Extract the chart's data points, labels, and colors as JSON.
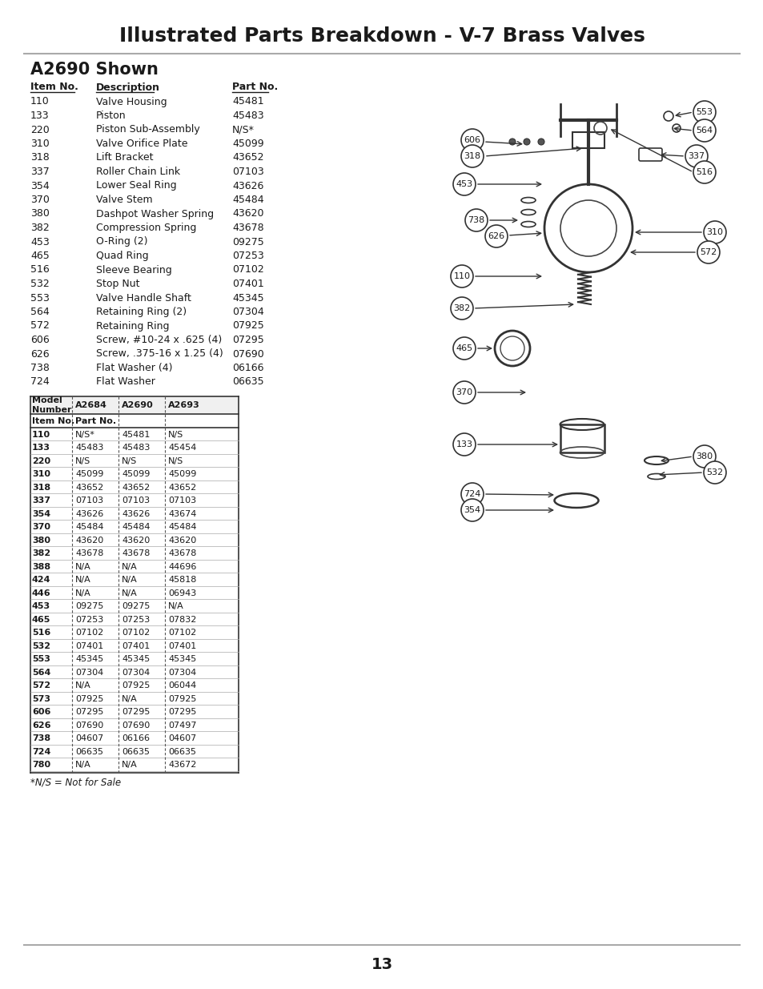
{
  "title": "Illustrated Parts Breakdown - V-7 Brass Valves",
  "subtitle": "A2690 Shown",
  "page_number": "13",
  "bg_color": "#ffffff",
  "text_color": "#1a1a1a",
  "parts_list": [
    {
      "item": "110",
      "desc": "Valve Housing",
      "part": "45481"
    },
    {
      "item": "133",
      "desc": "Piston",
      "part": "45483"
    },
    {
      "item": "220",
      "desc": "Piston Sub-Assembly",
      "part": "N/S*"
    },
    {
      "item": "310",
      "desc": "Valve Orifice Plate",
      "part": "45099"
    },
    {
      "item": "318",
      "desc": "Lift Bracket",
      "part": "43652"
    },
    {
      "item": "337",
      "desc": "Roller Chain Link",
      "part": "07103"
    },
    {
      "item": "354",
      "desc": "Lower Seal Ring",
      "part": "43626"
    },
    {
      "item": "370",
      "desc": "Valve Stem",
      "part": "45484"
    },
    {
      "item": "380",
      "desc": "Dashpot Washer Spring",
      "part": "43620"
    },
    {
      "item": "382",
      "desc": "Compression Spring",
      "part": "43678"
    },
    {
      "item": "453",
      "desc": "O-Ring (2)",
      "part": "09275"
    },
    {
      "item": "465",
      "desc": "Quad Ring",
      "part": "07253"
    },
    {
      "item": "516",
      "desc": "Sleeve Bearing",
      "part": "07102"
    },
    {
      "item": "532",
      "desc": "Stop Nut",
      "part": "07401"
    },
    {
      "item": "553",
      "desc": "Valve Handle Shaft",
      "part": "45345"
    },
    {
      "item": "564",
      "desc": "Retaining Ring (2)",
      "part": "07304"
    },
    {
      "item": "572",
      "desc": "Retaining Ring",
      "part": "07925"
    },
    {
      "item": "606",
      "desc": "Screw, #10-24 x .625 (4)",
      "part": "07295"
    },
    {
      "item": "626",
      "desc": "Screw, .375-16 x 1.25 (4)",
      "part": "07690"
    },
    {
      "item": "738",
      "desc": "Flat Washer (4)",
      "part": "06166"
    },
    {
      "item": "724",
      "desc": "Flat Washer",
      "part": "06635"
    }
  ],
  "comparison_table": {
    "headers": [
      "Model\nNumber",
      "A2684",
      "A2690",
      "A2693"
    ],
    "subheader": [
      "Item No.",
      "Part No.",
      "",
      ""
    ],
    "rows": [
      [
        "110",
        "N/S*",
        "45481",
        "N/S"
      ],
      [
        "133",
        "45483",
        "45483",
        "45454"
      ],
      [
        "220",
        "N/S",
        "N/S",
        "N/S"
      ],
      [
        "310",
        "45099",
        "45099",
        "45099"
      ],
      [
        "318",
        "43652",
        "43652",
        "43652"
      ],
      [
        "337",
        "07103",
        "07103",
        "07103"
      ],
      [
        "354",
        "43626",
        "43626",
        "43674"
      ],
      [
        "370",
        "45484",
        "45484",
        "45484"
      ],
      [
        "380",
        "43620",
        "43620",
        "43620"
      ],
      [
        "382",
        "43678",
        "43678",
        "43678"
      ],
      [
        "388",
        "N/A",
        "N/A",
        "44696"
      ],
      [
        "424",
        "N/A",
        "N/A",
        "45818"
      ],
      [
        "446",
        "N/A",
        "N/A",
        "06943"
      ],
      [
        "453",
        "09275",
        "09275",
        "N/A"
      ],
      [
        "465",
        "07253",
        "07253",
        "07832"
      ],
      [
        "516",
        "07102",
        "07102",
        "07102"
      ],
      [
        "532",
        "07401",
        "07401",
        "07401"
      ],
      [
        "553",
        "45345",
        "45345",
        "45345"
      ],
      [
        "564",
        "07304",
        "07304",
        "07304"
      ],
      [
        "572",
        "N/A",
        "07925",
        "06044"
      ],
      [
        "573",
        "07925",
        "N/A",
        "07925"
      ],
      [
        "606",
        "07295",
        "07295",
        "07295"
      ],
      [
        "626",
        "07690",
        "07690",
        "07497"
      ],
      [
        "738",
        "04607",
        "06166",
        "04607"
      ],
      [
        "724",
        "06635",
        "06635",
        "06635"
      ],
      [
        "780",
        "N/A",
        "N/A",
        "43672"
      ]
    ]
  },
  "footnote": "*N/S = Not for Sale"
}
